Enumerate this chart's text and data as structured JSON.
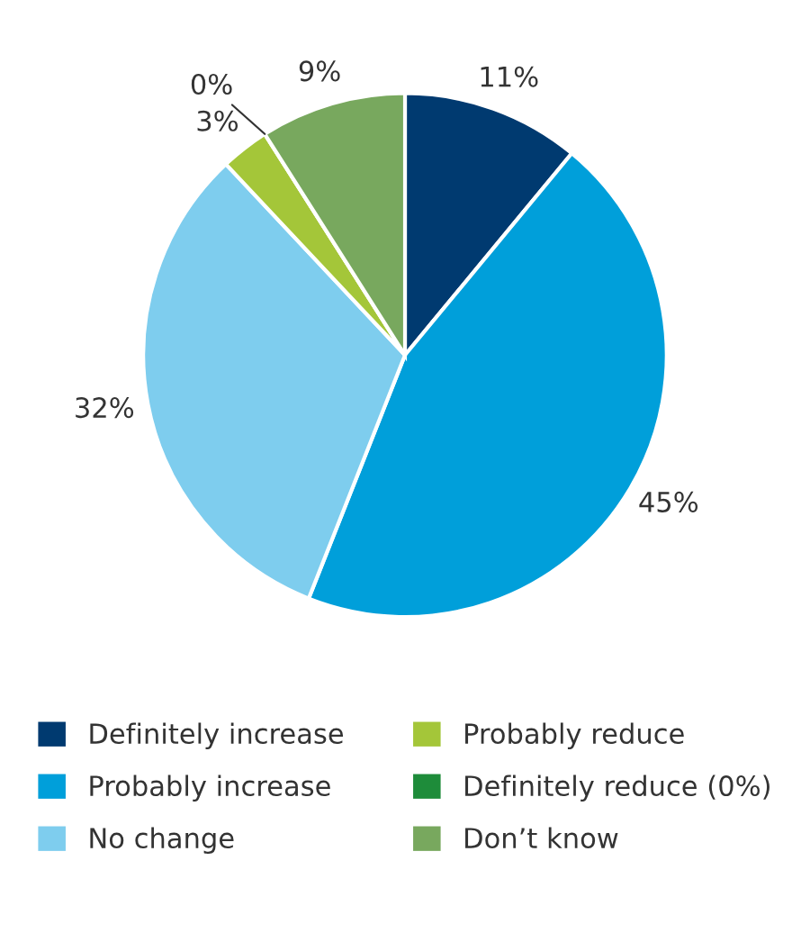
{
  "chart_data": {
    "type": "pie",
    "categories": [
      "Definitely increase",
      "Probably increase",
      "No change",
      "Probably reduce",
      "Definitely reduce (0%)",
      "Don’t know"
    ],
    "values": [
      11,
      45,
      32,
      3,
      0,
      9
    ],
    "colors": [
      "#003a70",
      "#009fda",
      "#7ecdee",
      "#a4c639",
      "#1e8c3a",
      "#78a85e"
    ],
    "value_labels": [
      "11%",
      "45%",
      "32%",
      "3%",
      "0%",
      "9%"
    ],
    "legend": "bottom"
  }
}
